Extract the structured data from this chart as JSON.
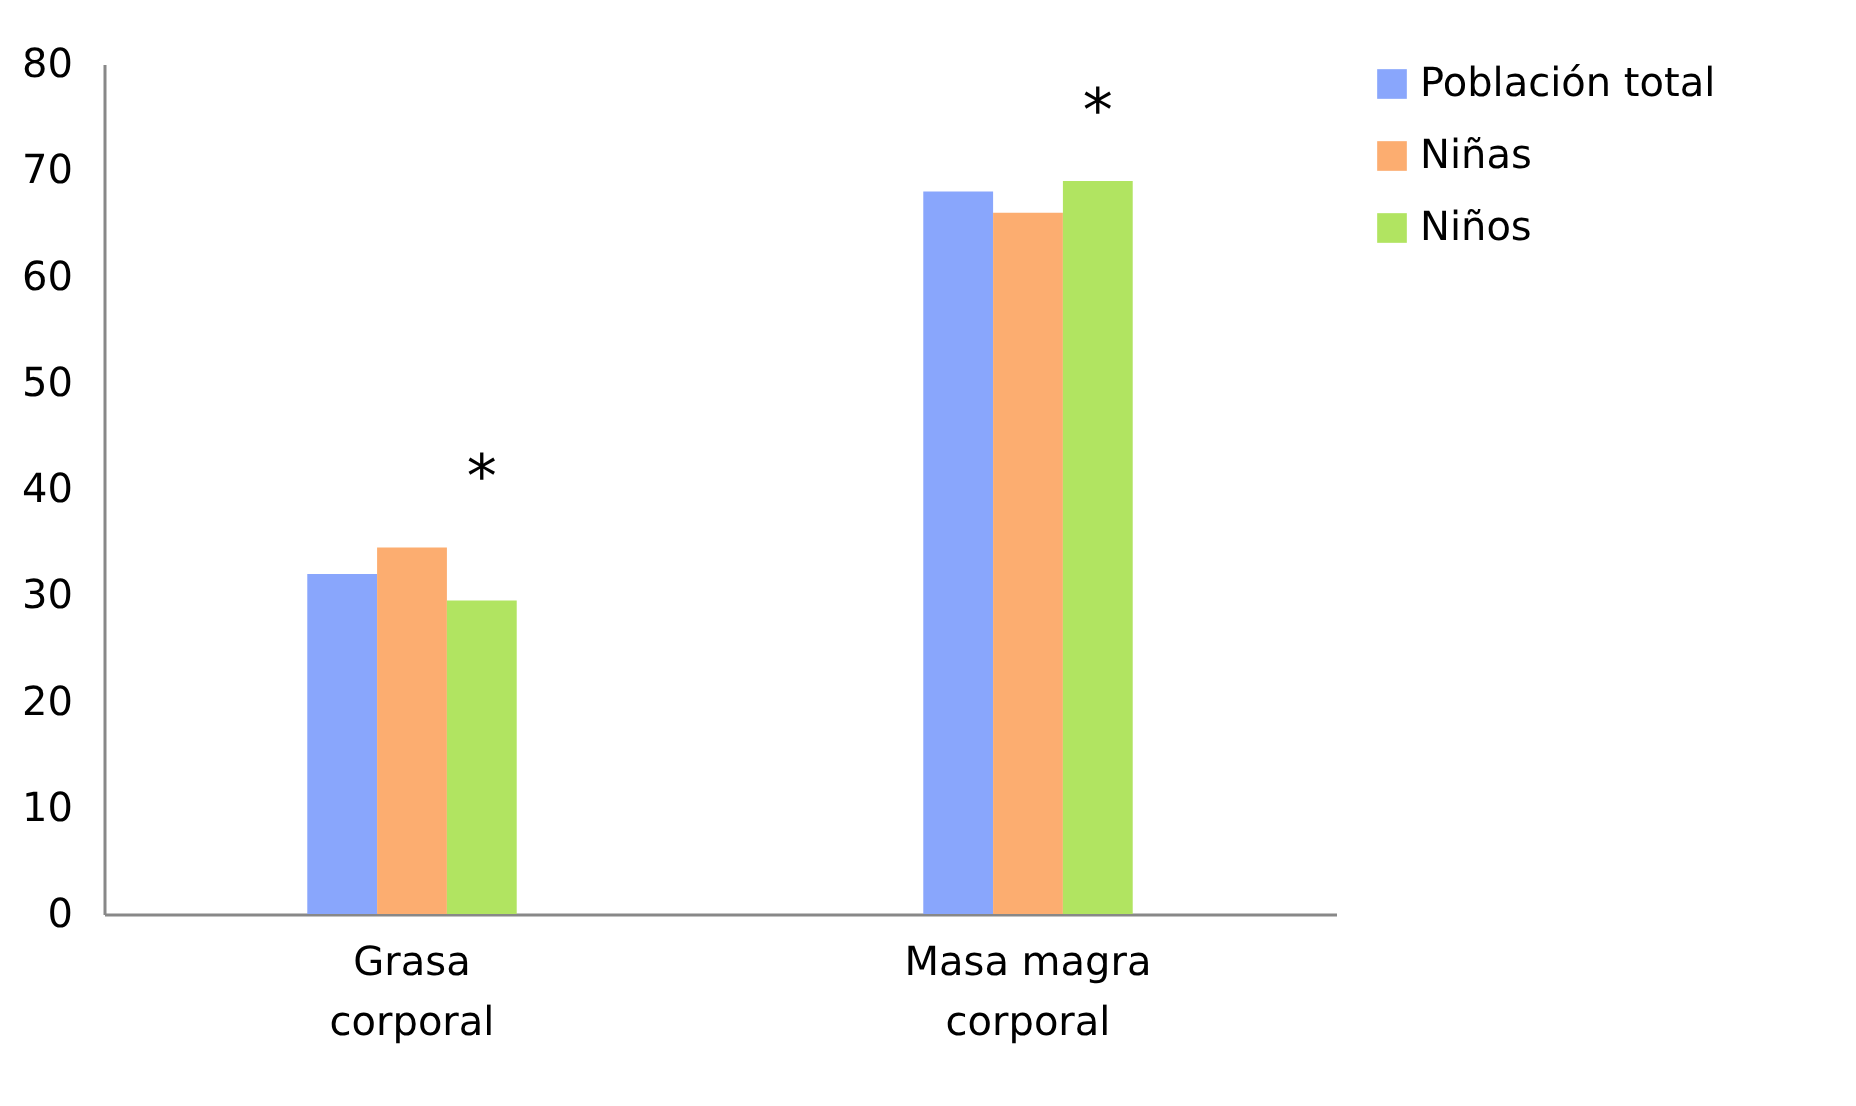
{
  "chart_data": {
    "type": "bar",
    "categories": [
      "Grasa corporal",
      "Masa magra corporal"
    ],
    "series": [
      {
        "name": "Población total",
        "color": "#89a6fc",
        "values": [
          32,
          68
        ]
      },
      {
        "name": "Niñas",
        "color": "#fcad70",
        "values": [
          34.5,
          66
        ]
      },
      {
        "name": "Niños",
        "color": "#b1e461",
        "values": [
          29.5,
          69
        ]
      }
    ],
    "ylim": [
      0,
      80
    ],
    "yticks": [
      0,
      10,
      20,
      30,
      40,
      50,
      60,
      70,
      80
    ],
    "grid": false,
    "legend": "right",
    "annotations": [
      "*",
      "*"
    ]
  }
}
